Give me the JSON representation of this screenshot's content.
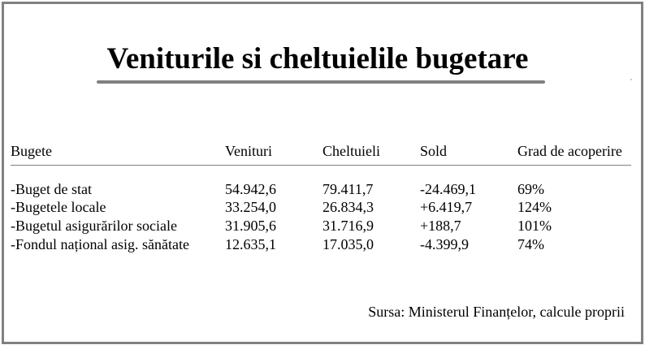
{
  "title": "Veniturile si cheltuielile bugetare",
  "table": {
    "headers": [
      "Bugete",
      "Venituri",
      "Cheltuieli",
      "Sold",
      "Grad de acoperire"
    ],
    "rows": [
      [
        "-Buget de stat",
        "54.942,6",
        "79.411,7",
        "-24.469,1",
        "69%"
      ],
      [
        "-Bugetele locale",
        "33.254,0",
        "26.834,3",
        "+6.419,7",
        "124%"
      ],
      [
        "-Bugetul asigurărilor sociale",
        "31.905,6",
        "31.716,9",
        "+188,7",
        "101%"
      ],
      [
        "-Fondul național asig. sănătate",
        "12.635,1",
        "17.035,0",
        "-4.399,9",
        "74%"
      ]
    ]
  },
  "source": "Sursa: Ministerul Finanțelor, calcule proprii",
  "colors": {
    "frame": "#808080",
    "underline": "#808080",
    "text": "#000000"
  }
}
